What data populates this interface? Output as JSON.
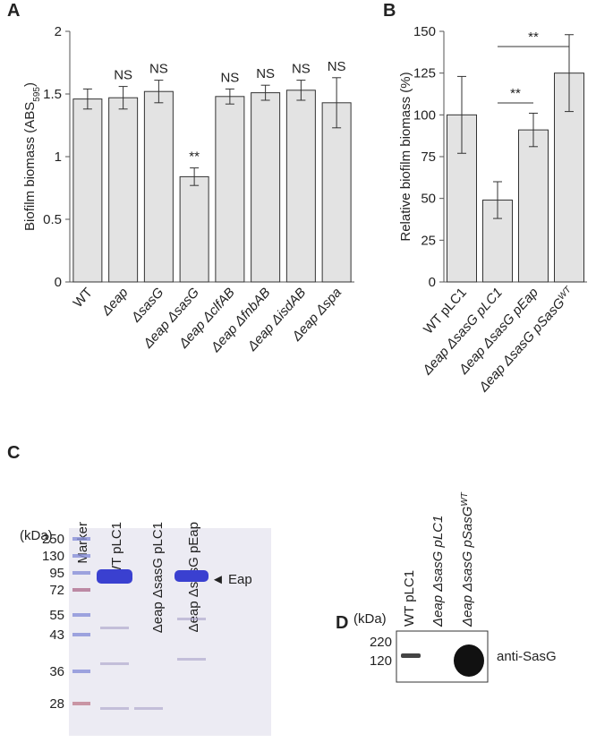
{
  "chart_data": [
    {
      "type": "bar",
      "panel_label": "A",
      "ylabel": "Biofilm biomass (ABS",
      "ylabel_sub": "595",
      "ylabel_end": ")",
      "categories": [
        "WT",
        "Δeap",
        "ΔsasG",
        "Δeap ΔsasG",
        "Δeap ΔclfAB",
        "Δeap ΔfnbAB",
        "Δeap ΔisdAB",
        "Δeap Δspa"
      ],
      "values": [
        1.46,
        1.47,
        1.52,
        0.84,
        1.48,
        1.51,
        1.53,
        1.43
      ],
      "errors": [
        0.08,
        0.09,
        0.09,
        0.07,
        0.06,
        0.06,
        0.08,
        0.2
      ],
      "annotations": [
        null,
        "NS",
        "NS",
        "**",
        "NS",
        "NS",
        "NS",
        "NS"
      ],
      "color": "#e3e3e3",
      "ylim": [
        0,
        2
      ],
      "yticks": [
        0,
        0.5,
        1,
        1.5,
        2
      ]
    },
    {
      "type": "bar",
      "panel_label": "B",
      "ylabel": "Relative biofilm biomass (%)",
      "categories": [
        "WT pLC1",
        "Δeap ΔsasG pLC1",
        "Δeap ΔsasG pEap",
        "Δeap ΔsasG pSasG"
      ],
      "label_superscripts": [
        null,
        null,
        null,
        "WT"
      ],
      "values": [
        100,
        49,
        91,
        125
      ],
      "errors": [
        23,
        11,
        10,
        23
      ],
      "brackets": [
        {
          "from": 1,
          "to": 2,
          "label": "**"
        },
        {
          "from": 1,
          "to": 3,
          "label": "**"
        }
      ],
      "color": "#e3e3e3",
      "ylim": [
        0,
        150
      ],
      "yticks": [
        0,
        25,
        50,
        75,
        100,
        125,
        150
      ]
    }
  ],
  "gel_c": {
    "panel_label": "C",
    "unit": "(kDa)",
    "lanes": [
      "Marker",
      "WT pLC1",
      "Δeap ΔsasG pLC1",
      "Δeap ΔsasG pEap"
    ],
    "markers": [
      "250",
      "130",
      "95",
      "72",
      "55",
      "43",
      "36",
      "28"
    ],
    "band_label": "Eap"
  },
  "blot_d": {
    "panel_label": "D",
    "unit": "(kDa)",
    "lanes": [
      "WT pLC1",
      "Δeap ΔsasG pLC1",
      "Δeap ΔsasG pSasG"
    ],
    "lane_superscripts": [
      null,
      null,
      "WT"
    ],
    "markers": [
      "220",
      "120"
    ],
    "antibody": "anti-SasG"
  }
}
